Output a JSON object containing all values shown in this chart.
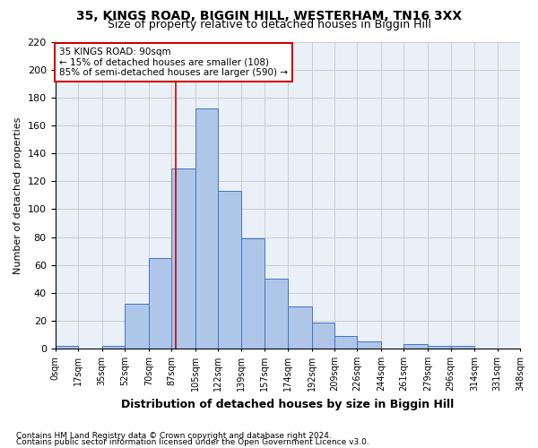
{
  "title1": "35, KINGS ROAD, BIGGIN HILL, WESTERHAM, TN16 3XX",
  "title2": "Size of property relative to detached houses in Biggin Hill",
  "xlabel": "Distribution of detached houses by size in Biggin Hill",
  "ylabel": "Number of detached properties",
  "footnote1": "Contains HM Land Registry data © Crown copyright and database right 2024.",
  "footnote2": "Contains public sector information licensed under the Open Government Licence v3.0.",
  "annotation_title": "35 KINGS ROAD: 90sqm",
  "annotation_line1": "← 15% of detached houses are smaller (108)",
  "annotation_line2": "85% of semi-detached houses are larger (590) →",
  "bar_values": [
    2,
    0,
    2,
    32,
    65,
    129,
    172,
    113,
    79,
    50,
    30,
    19,
    9,
    5,
    0,
    3,
    2,
    2
  ],
  "bin_edges": [
    0,
    17,
    35,
    52,
    70,
    87,
    105,
    122,
    139,
    157,
    174,
    192,
    209,
    226,
    244,
    261,
    279,
    296,
    314,
    331,
    348
  ],
  "bin_labels": [
    "0sqm",
    "17sqm",
    "35sqm",
    "52sqm",
    "70sqm",
    "87sqm",
    "105sqm",
    "122sqm",
    "139sqm",
    "157sqm",
    "174sqm",
    "192sqm",
    "209sqm",
    "226sqm",
    "244sqm",
    "261sqm",
    "279sqm",
    "296sqm",
    "314sqm",
    "331sqm",
    "348sqm"
  ],
  "property_size": 90,
  "bar_color": "#aec6e8",
  "bar_edge_color": "#4472c4",
  "vline_color": "#cc0000",
  "annotation_box_color": "#cc0000",
  "grid_color": "#cccccc",
  "bg_color": "#eaf0f8",
  "ylim": [
    0,
    220
  ],
  "yticks": [
    0,
    20,
    40,
    60,
    80,
    100,
    120,
    140,
    160,
    180,
    200,
    220
  ]
}
